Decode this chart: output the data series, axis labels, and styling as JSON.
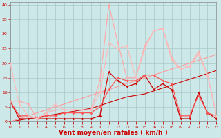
{
  "x": [
    0,
    1,
    2,
    3,
    4,
    5,
    6,
    7,
    8,
    9,
    10,
    11,
    12,
    13,
    14,
    15,
    16,
    17,
    18,
    19,
    20,
    21,
    22,
    23
  ],
  "background_color": "#cce8e8",
  "grid_color": "#aac8c8",
  "xlabel": "Vent moyen/en rafales ( km/h )",
  "xlabel_color": "#cc0000",
  "xlabel_fontsize": 6.5,
  "ylabel_ticks": [
    0,
    5,
    10,
    15,
    20,
    25,
    30,
    35,
    40
  ],
  "xlim": [
    0,
    23
  ],
  "ylim": [
    0,
    41
  ],
  "series": [
    {
      "name": "line1_dark_diagonal",
      "color": "#cc0000",
      "linewidth": 0.8,
      "marker": "",
      "markersize": 0,
      "values": [
        0,
        0.5,
        1.0,
        1.5,
        2.0,
        2.5,
        3.0,
        3.5,
        4.0,
        4.5,
        5.5,
        6.5,
        7.5,
        8.5,
        9.0,
        9.5,
        10.5,
        11.5,
        12.5,
        13.5,
        14.5,
        15.5,
        16.5,
        17.5
      ]
    },
    {
      "name": "line2_light_diagonal",
      "color": "#ff9999",
      "linewidth": 0.8,
      "marker": "",
      "markersize": 0,
      "values": [
        0,
        1,
        2,
        3,
        4,
        5,
        6,
        7,
        8,
        9,
        10,
        11,
        12,
        13,
        14,
        15,
        16,
        17,
        18,
        19,
        20,
        21,
        22,
        23
      ]
    },
    {
      "name": "line3_dark_red_markers",
      "color": "#cc0000",
      "linewidth": 0.9,
      "marker": "D",
      "markersize": 1.8,
      "values": [
        7,
        1,
        1,
        1,
        1,
        1,
        1,
        1,
        1,
        1,
        2,
        17,
        14,
        12,
        13,
        16,
        11,
        13,
        11,
        1,
        1,
        10,
        3,
        1
      ]
    },
    {
      "name": "line4_med_red_markers",
      "color": "#ff5555",
      "linewidth": 0.9,
      "marker": "D",
      "markersize": 1.8,
      "values": [
        7,
        2,
        2,
        1,
        2,
        2,
        3,
        3,
        3,
        3,
        5,
        11,
        15,
        14,
        14,
        16,
        16,
        14,
        13,
        2,
        2,
        9,
        3,
        2
      ]
    },
    {
      "name": "line5_light_pink_peak40",
      "color": "#ffaaaa",
      "linewidth": 0.9,
      "marker": "D",
      "markersize": 1.8,
      "values": [
        7,
        7,
        6,
        1,
        3,
        4,
        4,
        4,
        4,
        4,
        14,
        40,
        27,
        15,
        15,
        26,
        31,
        32,
        22,
        18,
        19,
        24,
        16,
        2
      ]
    },
    {
      "name": "line6_pink_peak32",
      "color": "#ffbbbb",
      "linewidth": 0.9,
      "marker": "D",
      "markersize": 1.8,
      "values": [
        20,
        6,
        2,
        1,
        3,
        6,
        4,
        4,
        4,
        4,
        10,
        27,
        25,
        26,
        15,
        25,
        31,
        32,
        21,
        18,
        19,
        23,
        16,
        2
      ]
    }
  ]
}
